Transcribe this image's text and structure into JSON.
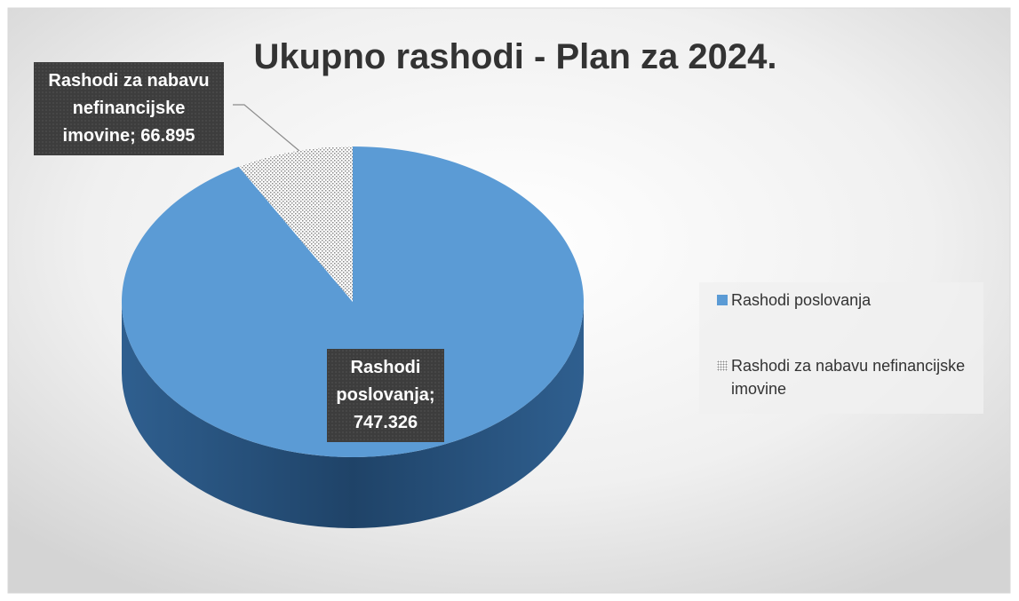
{
  "chart_data": {
    "type": "pie",
    "title": "Ukupno rashodi - Plan za 2024.",
    "categories": [
      "Rashodi poslovanja",
      "Rashodi za nabavu nefinancijske imovine"
    ],
    "values": [
      747326,
      66895
    ],
    "value_labels": [
      "Rashodi poslovanja; 747.326",
      "Rashodi za nabavu nefinancijske imovine; 66.895"
    ],
    "colors": [
      "#5b9bd5",
      "dotted"
    ],
    "legend": "right"
  }
}
